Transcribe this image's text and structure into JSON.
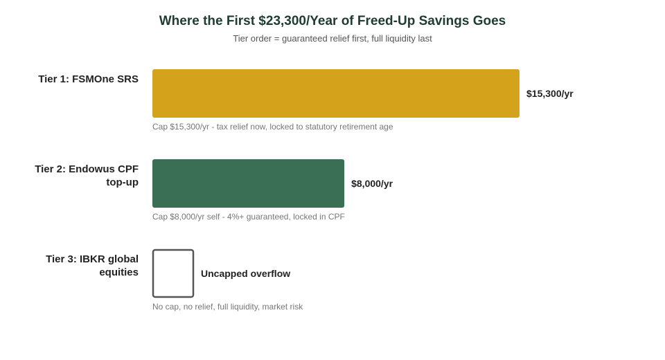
{
  "chart_data": {
    "type": "bar",
    "orientation": "horizontal",
    "title": "Where the First $23,300/Year of Freed-Up Savings Goes",
    "subtitle": "Tier order = guaranteed relief first, full liquidity last",
    "xlim": [
      0,
      15300
    ],
    "grid": false,
    "bars": [
      {
        "label_lines": [
          "Tier 1: FSMOne SRS"
        ],
        "value": 15300,
        "value_label": "$15,300/yr",
        "note": "Cap $15,300/yr - tax relief now, locked to statutory retirement age",
        "color": "#d4a21b",
        "style": "filled"
      },
      {
        "label_lines": [
          "Tier 2: Endowus CPF",
          "top-up"
        ],
        "value": 8000,
        "value_label": "$8,000/yr",
        "note": "Cap $8,000/yr self - 4%+ guaranteed, locked in CPF",
        "color": "#3a6f55",
        "style": "filled"
      },
      {
        "label_lines": [
          "Tier 3: IBKR global",
          "equities"
        ],
        "value": null,
        "value_label": "Uncapped overflow",
        "note": "No cap, no relief, full liquidity, market risk",
        "color": "#555555",
        "style": "outline"
      }
    ]
  }
}
